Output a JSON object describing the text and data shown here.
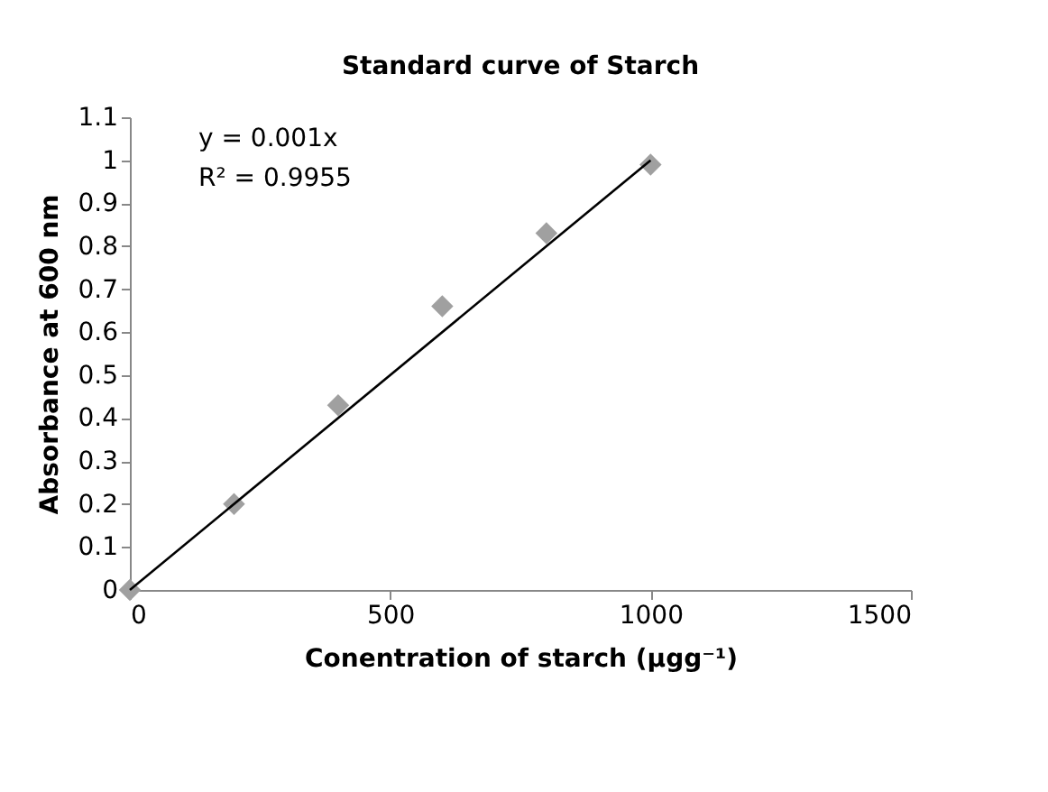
{
  "chart_data": {
    "type": "scatter",
    "title": "Standard curve of Starch",
    "xlabel": "Conentration of starch (μgg⁻¹)",
    "ylabel": "Absorbance at 600 nm",
    "x": [
      0,
      200,
      400,
      600,
      800,
      1000
    ],
    "series": [
      {
        "type": "scatter",
        "color": "#a0a0a0",
        "marker": "diamond",
        "values": [
          0,
          0.2,
          0.43,
          0.66,
          0.83,
          0.99
        ]
      },
      {
        "type": "line",
        "color": "#000000",
        "x": [
          0,
          1000
        ],
        "values": [
          0,
          1
        ],
        "line_style": "solid"
      }
    ],
    "annotations": [
      "y = 0.001x",
      "R² = 0.9955"
    ],
    "xlim": [
      0,
      1500
    ],
    "xticks": [
      0,
      500,
      1000,
      1500
    ],
    "ylim": [
      0,
      1.1
    ],
    "yticks": [
      0,
      0.1,
      0.2,
      0.3,
      0.4,
      0.5,
      0.6,
      0.7,
      0.8,
      0.9,
      1,
      1.1
    ],
    "grid": false,
    "legend": false
  }
}
